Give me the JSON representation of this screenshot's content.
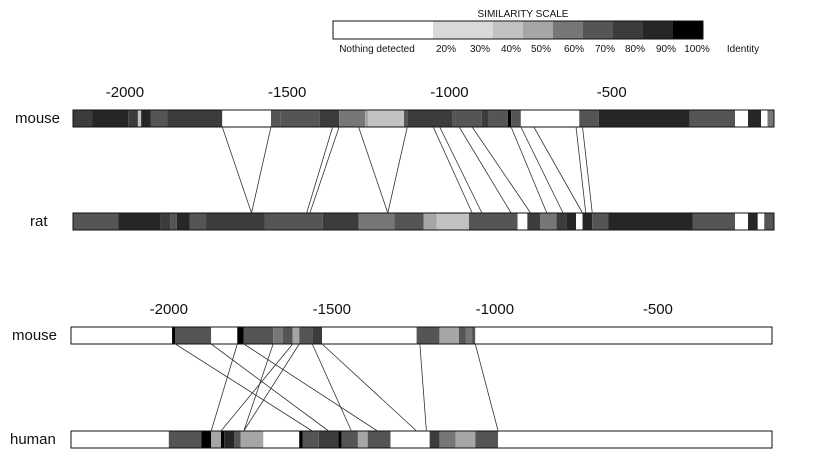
{
  "similarity_scale": {
    "title": "SIMILARITY SCALE",
    "labels": [
      "Nothing detected",
      "20%",
      "30%",
      "40%",
      "50%",
      "60%",
      "70%",
      "80%",
      "90%",
      "100%",
      "Identity"
    ],
    "colors": [
      "#ffffff",
      "#d9d9d9",
      "#c2c2c2",
      "#a6a6a6",
      "#777777",
      "#555555",
      "#3c3c3c",
      "#262626",
      "#000000"
    ],
    "levels": [
      "Nothing detected",
      "20%-30%",
      "30%-40%",
      "40%-50%",
      "50%-60%",
      "60%-70%",
      "70%-80%",
      "80%-90%",
      "90%-100%"
    ]
  },
  "panels": [
    {
      "ticks": [
        "-2000",
        "-1500",
        "-1000",
        "-500"
      ],
      "tick_values": [
        -2000,
        -1500,
        -1000,
        -500
      ],
      "axis_range": [
        -2160,
        0
      ],
      "tracks": [
        {
          "label": "mouse",
          "segments": [
            [
              -2160,
              -2100,
              "#3c3c3c"
            ],
            [
              -2100,
              -1990,
              "#262626"
            ],
            [
              -1990,
              -1960,
              "#3c3c3c"
            ],
            [
              -1960,
              -1950,
              "#c2c2c2"
            ],
            [
              -1950,
              -1920,
              "#262626"
            ],
            [
              -1920,
              -1870,
              "#555555"
            ],
            [
              -1870,
              -1700,
              "#3c3c3c"
            ],
            [
              -1700,
              -1550,
              "#ffffff"
            ],
            [
              -1550,
              -1520,
              "#555555"
            ],
            [
              -1520,
              -1400,
              "#555555"
            ],
            [
              -1400,
              -1340,
              "#3c3c3c"
            ],
            [
              -1340,
              -1260,
              "#777777"
            ],
            [
              -1260,
              -1250,
              "#a6a6a6"
            ],
            [
              -1250,
              -1140,
              "#c2c2c2"
            ],
            [
              -1140,
              -1130,
              "#555555"
            ],
            [
              -1130,
              -990,
              "#3c3c3c"
            ],
            [
              -990,
              -980,
              "#555555"
            ],
            [
              -980,
              -900,
              "#555555"
            ],
            [
              -900,
              -880,
              "#3c3c3c"
            ],
            [
              -880,
              -820,
              "#555555"
            ],
            [
              -820,
              -810,
              "#000000"
            ],
            [
              -810,
              -780,
              "#555555"
            ],
            [
              -780,
              -600,
              "#ffffff"
            ],
            [
              -600,
              -540,
              "#555555"
            ],
            [
              -540,
              -260,
              "#262626"
            ],
            [
              -260,
              -120,
              "#555555"
            ],
            [
              -120,
              -80,
              "#ffffff"
            ],
            [
              -80,
              -40,
              "#262626"
            ],
            [
              -40,
              -20,
              "#ffffff"
            ],
            [
              -20,
              0,
              "#777777"
            ]
          ]
        },
        {
          "label": "rat",
          "segments": [
            [
              -2160,
              -2020,
              "#555555"
            ],
            [
              -2020,
              -1890,
              "#262626"
            ],
            [
              -1890,
              -1860,
              "#3c3c3c"
            ],
            [
              -1860,
              -1840,
              "#555555"
            ],
            [
              -1840,
              -1800,
              "#262626"
            ],
            [
              -1800,
              -1750,
              "#555555"
            ],
            [
              -1750,
              -1570,
              "#3c3c3c"
            ],
            [
              -1570,
              -1390,
              "#555555"
            ],
            [
              -1390,
              -1280,
              "#3c3c3c"
            ],
            [
              -1280,
              -1170,
              "#777777"
            ],
            [
              -1170,
              -1080,
              "#555555"
            ],
            [
              -1080,
              -1040,
              "#a6a6a6"
            ],
            [
              -1040,
              -940,
              "#c2c2c2"
            ],
            [
              -940,
              -790,
              "#555555"
            ],
            [
              -790,
              -760,
              "#ffffff"
            ],
            [
              -760,
              -720,
              "#3c3c3c"
            ],
            [
              -720,
              -670,
              "#777777"
            ],
            [
              -670,
              -640,
              "#3c3c3c"
            ],
            [
              -640,
              -610,
              "#262626"
            ],
            [
              -610,
              -590,
              "#ffffff"
            ],
            [
              -590,
              -560,
              "#262626"
            ],
            [
              -560,
              -510,
              "#555555"
            ],
            [
              -510,
              -250,
              "#262626"
            ],
            [
              -250,
              -120,
              "#555555"
            ],
            [
              -120,
              -80,
              "#ffffff"
            ],
            [
              -80,
              -50,
              "#262626"
            ],
            [
              -50,
              -30,
              "#ffffff"
            ],
            [
              -30,
              0,
              "#555555"
            ]
          ]
        }
      ],
      "links": [
        [
          -1700,
          -1610
        ],
        [
          -1550,
          -1610
        ],
        [
          -1360,
          -1440
        ],
        [
          -1340,
          -1430
        ],
        [
          -1280,
          -1190
        ],
        [
          -1130,
          -1190
        ],
        [
          -1050,
          -930
        ],
        [
          -1030,
          -900
        ],
        [
          -970,
          -810
        ],
        [
          -930,
          -750
        ],
        [
          -810,
          -700
        ],
        [
          -780,
          -650
        ],
        [
          -740,
          -590
        ],
        [
          -610,
          -580
        ],
        [
          -590,
          -560
        ]
      ]
    },
    {
      "ticks": [
        "-2000",
        "-1500",
        "-1000",
        "-500"
      ],
      "tick_values": [
        -2000,
        -1500,
        -1000,
        -500
      ],
      "axis_range": [
        -2300,
        -150
      ],
      "tracks": [
        {
          "label": "mouse",
          "segments": [
            [
              -2300,
              -1990,
              "#ffffff"
            ],
            [
              -1990,
              -1980,
              "#000000"
            ],
            [
              -1980,
              -1870,
              "#555555"
            ],
            [
              -1870,
              -1790,
              "#ffffff"
            ],
            [
              -1790,
              -1770,
              "#000000"
            ],
            [
              -1770,
              -1680,
              "#555555"
            ],
            [
              -1680,
              -1650,
              "#777777"
            ],
            [
              -1650,
              -1620,
              "#555555"
            ],
            [
              -1620,
              -1600,
              "#a6a6a6"
            ],
            [
              -1600,
              -1560,
              "#555555"
            ],
            [
              -1560,
              -1530,
              "#3c3c3c"
            ],
            [
              -1530,
              -1240,
              "#ffffff"
            ],
            [
              -1240,
              -1170,
              "#555555"
            ],
            [
              -1170,
              -1110,
              "#a6a6a6"
            ],
            [
              -1110,
              -1090,
              "#555555"
            ],
            [
              -1090,
              -1070,
              "#777777"
            ],
            [
              -1070,
              -1060,
              "#555555"
            ],
            [
              -1060,
              -150,
              "#ffffff"
            ]
          ]
        },
        {
          "label": "human",
          "segments": [
            [
              -2300,
              -2000,
              "#ffffff"
            ],
            [
              -2000,
              -1900,
              "#555555"
            ],
            [
              -1900,
              -1870,
              "#000000"
            ],
            [
              -1870,
              -1840,
              "#a6a6a6"
            ],
            [
              -1840,
              -1830,
              "#000000"
            ],
            [
              -1830,
              -1800,
              "#262626"
            ],
            [
              -1800,
              -1780,
              "#555555"
            ],
            [
              -1780,
              -1710,
              "#a6a6a6"
            ],
            [
              -1710,
              -1600,
              "#ffffff"
            ],
            [
              -1600,
              -1590,
              "#000000"
            ],
            [
              -1590,
              -1540,
              "#555555"
            ],
            [
              -1540,
              -1480,
              "#3c3c3c"
            ],
            [
              -1480,
              -1470,
              "#000000"
            ],
            [
              -1470,
              -1420,
              "#555555"
            ],
            [
              -1420,
              -1390,
              "#a6a6a6"
            ],
            [
              -1390,
              -1320,
              "#555555"
            ],
            [
              -1320,
              -1200,
              "#ffffff"
            ],
            [
              -1200,
              -1170,
              "#3c3c3c"
            ],
            [
              -1170,
              -1120,
              "#777777"
            ],
            [
              -1120,
              -1060,
              "#a6a6a6"
            ],
            [
              -1060,
              -990,
              "#555555"
            ],
            [
              -990,
              -150,
              "#ffffff"
            ]
          ]
        }
      ],
      "links": [
        [
          -1980,
          -1560
        ],
        [
          -1870,
          -1510
        ],
        [
          -1790,
          -1870
        ],
        [
          -1770,
          -1360
        ],
        [
          -1680,
          -1770
        ],
        [
          -1620,
          -1840
        ],
        [
          -1600,
          -1770
        ],
        [
          -1560,
          -1440
        ],
        [
          -1530,
          -1240
        ],
        [
          -1230,
          -1210
        ],
        [
          -1060,
          -990
        ]
      ]
    }
  ]
}
